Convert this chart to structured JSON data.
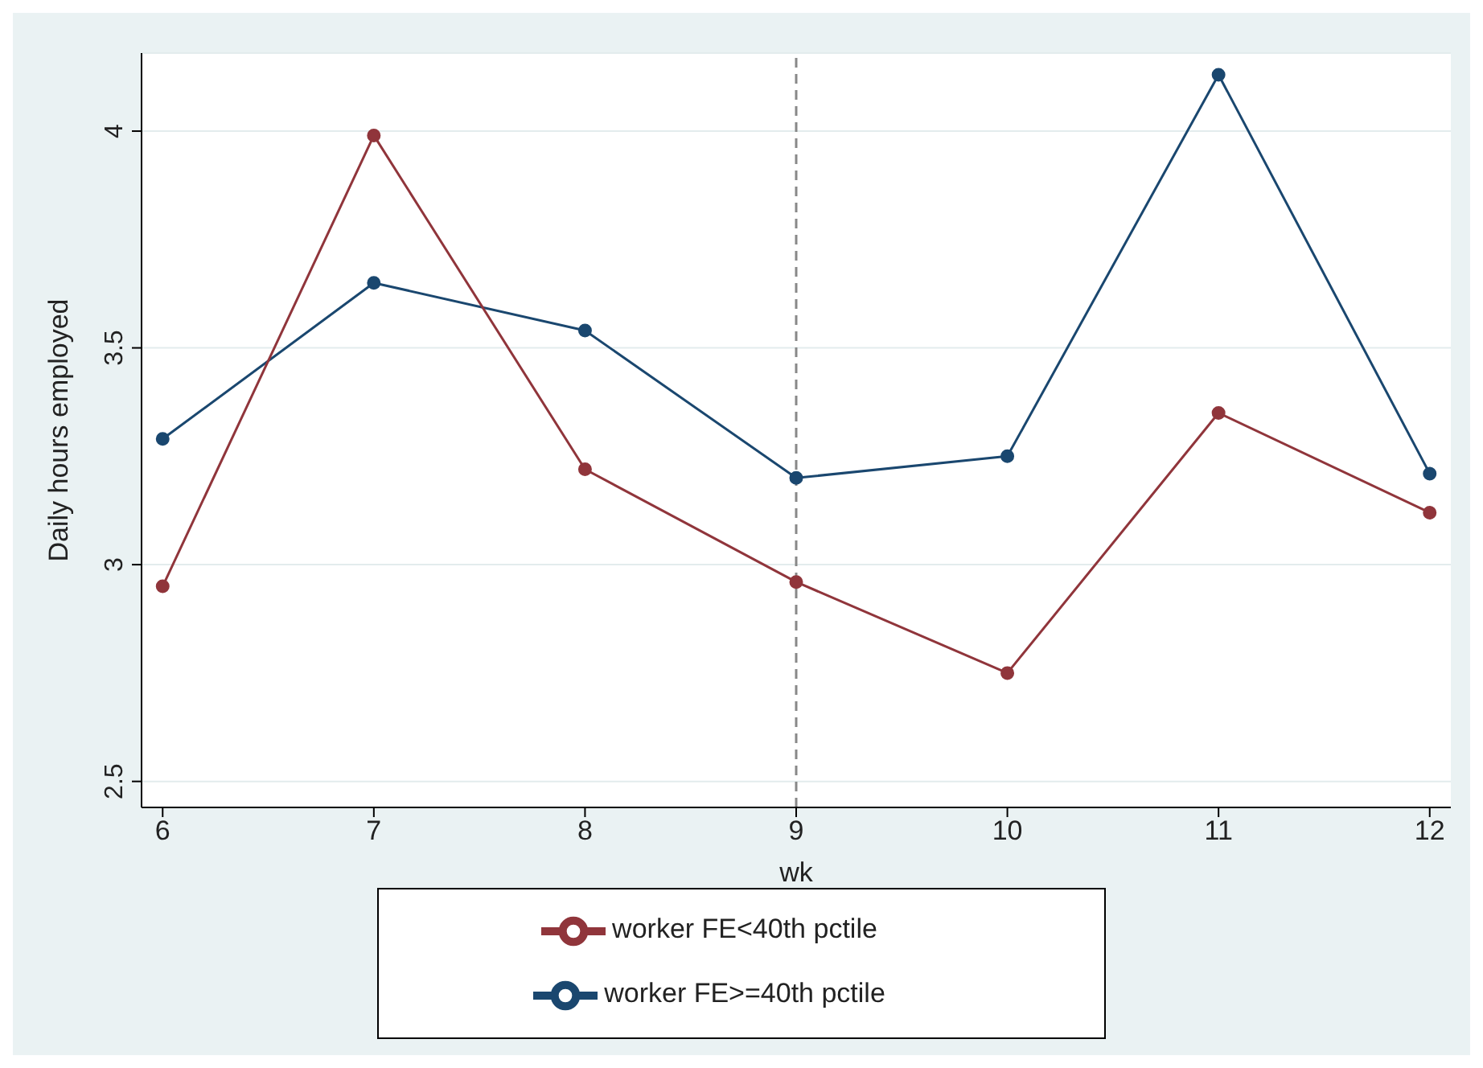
{
  "chart_data": {
    "type": "line",
    "xlabel": "wk",
    "ylabel": "Daily hours employed",
    "x": [
      6,
      7,
      8,
      9,
      10,
      11,
      12
    ],
    "series": [
      {
        "name": "worker FE>=40th pctile",
        "color": "#1a476f",
        "values": [
          3.29,
          3.65,
          3.54,
          3.2,
          3.25,
          4.13,
          3.21
        ]
      },
      {
        "name": "worker FE<40th pctile",
        "color": "#90353b",
        "values": [
          2.95,
          3.99,
          3.22,
          2.96,
          2.75,
          3.35,
          3.12
        ]
      }
    ],
    "xlim": [
      5.9,
      12.1
    ],
    "xticks": [
      6,
      7,
      8,
      9,
      10,
      11,
      12
    ],
    "ylim": [
      2.44,
      4.18
    ],
    "yticks": [
      2.5,
      3,
      3.5,
      4
    ],
    "ref_lines": [
      {
        "axis": "x",
        "value": 9,
        "color": "#888888",
        "line_style": "dashed"
      }
    ],
    "grid": "y",
    "legend": "bottom",
    "marker": "circle",
    "line_style": "solid"
  }
}
